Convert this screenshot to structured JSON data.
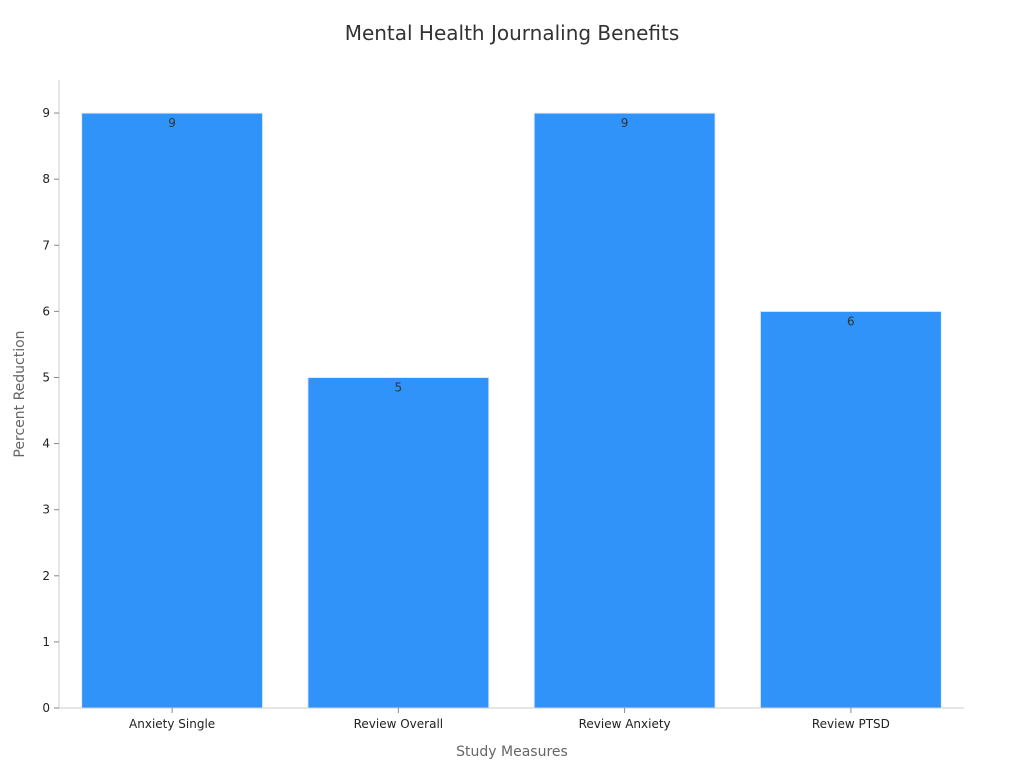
{
  "chart_data": {
    "type": "bar",
    "title": "Mental Health Journaling Benefits",
    "xlabel": "Study Measures",
    "ylabel": "Percent Reduction",
    "categories": [
      "Anxiety Single",
      "Review Overall",
      "Review Anxiety",
      "Review PTSD"
    ],
    "values": [
      9,
      5,
      9,
      6
    ],
    "ylim": [
      0,
      9.5
    ],
    "yticks": [
      0,
      1,
      2,
      3,
      4,
      5,
      6,
      7,
      8,
      9
    ],
    "grid": false,
    "bar_color": "#2f93f9"
  }
}
